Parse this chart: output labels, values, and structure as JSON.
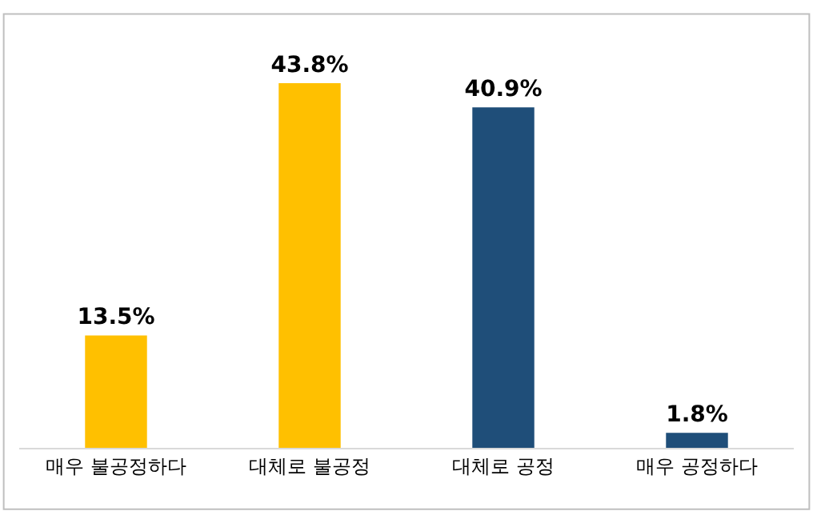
{
  "chart_data": {
    "type": "bar",
    "categories": [
      "매우 불공정하다",
      "대체로 불공정",
      "대체로 공정",
      "매우 공정하다"
    ],
    "values": [
      13.5,
      43.8,
      40.9,
      1.8
    ],
    "colors": [
      "#ffc000",
      "#ffc000",
      "#1f4e79",
      "#1f4e79"
    ],
    "value_labels": [
      "13.5%",
      "43.8%",
      "40.9%",
      "1.8%"
    ],
    "legend": false
  }
}
